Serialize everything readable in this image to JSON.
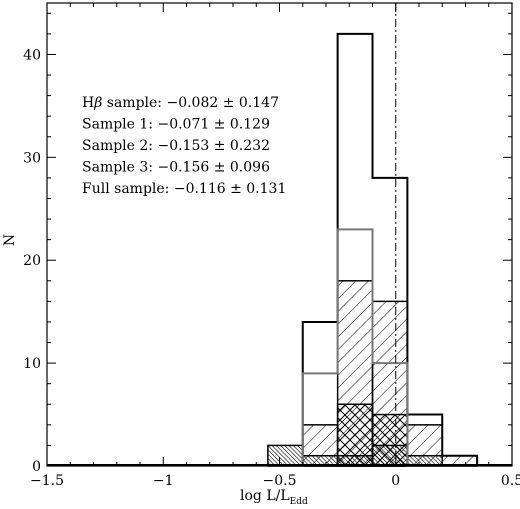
{
  "chart_data": {
    "type": "histogram",
    "xlabel": "log L/L",
    "xlabel_sub": "Edd",
    "ylabel": "N",
    "xlim": [
      -1.5,
      0.5
    ],
    "ylim": [
      0,
      45
    ],
    "xticks": [
      {
        "value": -1.5,
        "label": "−1.5"
      },
      {
        "value": -1,
        "label": "−1"
      },
      {
        "value": -0.5,
        "label": "−0.5"
      },
      {
        "value": 0,
        "label": "0"
      },
      {
        "value": 0.5,
        "label": "0.5"
      }
    ],
    "yticks": [
      {
        "value": 0,
        "label": "0"
      },
      {
        "value": 10,
        "label": "10"
      },
      {
        "value": 20,
        "label": "20"
      },
      {
        "value": 30,
        "label": "30"
      },
      {
        "value": 40,
        "label": "40"
      }
    ],
    "reference_line": {
      "x": 0,
      "style": "dash-dot"
    },
    "bin_edges": [
      -0.55,
      -0.4,
      -0.25,
      -0.1,
      0.05,
      0.2,
      0.35
    ],
    "series": [
      {
        "style": "outline-black",
        "color": "#000000",
        "counts": [
          0,
          14,
          42,
          28,
          5,
          1
        ]
      },
      {
        "style": "outline-gray",
        "color": "#777777",
        "counts": [
          0,
          9,
          23,
          10,
          0,
          0
        ]
      },
      {
        "style": "hatch-diagonal",
        "color": "#000000",
        "counts": [
          0,
          4,
          18,
          16,
          4,
          1
        ]
      },
      {
        "style": "hatch-cross",
        "color": "#000000",
        "counts": [
          0,
          0,
          6,
          5,
          0,
          0
        ]
      },
      {
        "style": "hatch-dense",
        "color": "#000000",
        "counts": [
          2,
          1,
          1,
          2,
          1,
          0
        ]
      }
    ],
    "annotations": [
      {
        "prefix": "H",
        "symbol": "β",
        "text": "  sample: −0.082 ± 0.147"
      },
      {
        "prefix": "",
        "symbol": "",
        "text": "Sample 1: −0.071 ± 0.129"
      },
      {
        "prefix": "",
        "symbol": "",
        "text": "Sample 2: −0.153 ± 0.232"
      },
      {
        "prefix": "",
        "symbol": "",
        "text": "Sample 3: −0.156 ± 0.096"
      },
      {
        "prefix": "",
        "symbol": "",
        "text": "Full sample: −0.116 ± 0.131"
      }
    ]
  }
}
